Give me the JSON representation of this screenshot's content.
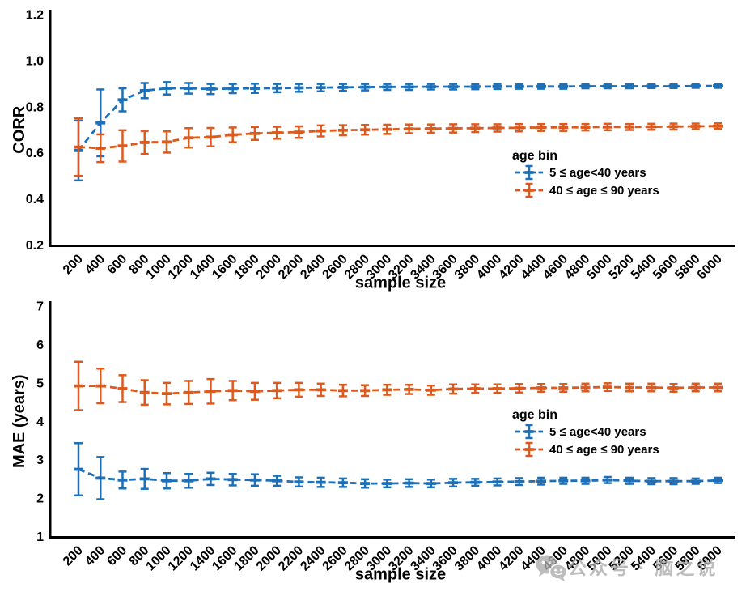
{
  "watermark": {
    "icon": "wechat-icon",
    "text": "公众号 · 脑之说"
  },
  "chart_data": [
    {
      "type": "line",
      "subtype": "errorbar",
      "title": "",
      "xlabel": "sample size",
      "ylabel": "CORR",
      "ylim": [
        0.2,
        1.2
      ],
      "yticks": [
        "0.2",
        "0.4",
        "0.6",
        "0.8",
        "1.0",
        "1.2"
      ],
      "x": [
        200,
        400,
        600,
        800,
        1000,
        1200,
        1400,
        1600,
        1800,
        2000,
        2200,
        2400,
        2600,
        2800,
        3000,
        3200,
        3400,
        3600,
        3800,
        4000,
        4200,
        4400,
        4600,
        4800,
        5000,
        5200,
        5400,
        5600,
        5800,
        6000
      ],
      "grid": false,
      "line_style": "dashed",
      "legend_title": "age bin",
      "legend_position": "inside-center-right",
      "series": [
        {
          "name": "5 ≤ age<40 years",
          "color": "#1d70b7",
          "values": [
            0.61,
            0.73,
            0.83,
            0.87,
            0.88,
            0.88,
            0.877,
            0.879,
            0.88,
            0.881,
            0.882,
            0.883,
            0.884,
            0.885,
            0.886,
            0.886,
            0.887,
            0.887,
            0.887,
            0.888,
            0.888,
            0.888,
            0.888,
            0.889,
            0.889,
            0.889,
            0.889,
            0.889,
            0.89,
            0.89
          ],
          "errors": [
            0.13,
            0.145,
            0.05,
            0.033,
            0.027,
            0.023,
            0.022,
            0.02,
            0.02,
            0.018,
            0.017,
            0.016,
            0.015,
            0.014,
            0.013,
            0.013,
            0.012,
            0.012,
            0.011,
            0.011,
            0.01,
            0.01,
            0.01,
            0.009,
            0.009,
            0.009,
            0.008,
            0.008,
            0.008,
            0.008
          ]
        },
        {
          "name": "40 ≤ age ≤ 90 years",
          "color": "#dc5a1d",
          "values": [
            0.625,
            0.62,
            0.63,
            0.645,
            0.647,
            0.665,
            0.668,
            0.678,
            0.684,
            0.687,
            0.69,
            0.695,
            0.698,
            0.7,
            0.702,
            0.704,
            0.705,
            0.706,
            0.707,
            0.708,
            0.709,
            0.71,
            0.71,
            0.711,
            0.712,
            0.712,
            0.713,
            0.714,
            0.715,
            0.716
          ],
          "errors": [
            0.125,
            0.06,
            0.068,
            0.05,
            0.046,
            0.042,
            0.04,
            0.032,
            0.028,
            0.026,
            0.025,
            0.024,
            0.022,
            0.021,
            0.02,
            0.019,
            0.018,
            0.018,
            0.017,
            0.016,
            0.016,
            0.015,
            0.015,
            0.014,
            0.014,
            0.013,
            0.013,
            0.013,
            0.012,
            0.012
          ]
        }
      ]
    },
    {
      "type": "line",
      "subtype": "errorbar",
      "title": "",
      "xlabel": "sample size",
      "ylabel": "MAE (years)",
      "ylim": [
        1,
        7
      ],
      "yticks": [
        "1",
        "2",
        "3",
        "4",
        "5",
        "6",
        "7"
      ],
      "x": [
        200,
        400,
        600,
        800,
        1000,
        1200,
        1400,
        1600,
        1800,
        2000,
        2200,
        2400,
        2600,
        2800,
        3000,
        3200,
        3400,
        3600,
        3800,
        4000,
        4200,
        4400,
        4600,
        4800,
        5000,
        5200,
        5400,
        5600,
        5800,
        6000
      ],
      "grid": false,
      "line_style": "dashed",
      "legend_title": "age bin",
      "legend_position": "inside-center-right",
      "series": [
        {
          "name": "5 ≤ age<40 years",
          "color": "#1d70b7",
          "values": [
            2.75,
            2.52,
            2.47,
            2.5,
            2.45,
            2.45,
            2.5,
            2.48,
            2.47,
            2.45,
            2.42,
            2.41,
            2.4,
            2.38,
            2.38,
            2.39,
            2.38,
            2.4,
            2.41,
            2.42,
            2.43,
            2.44,
            2.45,
            2.45,
            2.47,
            2.45,
            2.44,
            2.44,
            2.44,
            2.46
          ],
          "errors": [
            0.68,
            0.55,
            0.22,
            0.26,
            0.2,
            0.18,
            0.16,
            0.15,
            0.15,
            0.13,
            0.12,
            0.12,
            0.11,
            0.11,
            0.1,
            0.1,
            0.1,
            0.1,
            0.09,
            0.09,
            0.09,
            0.09,
            0.08,
            0.08,
            0.08,
            0.08,
            0.08,
            0.08,
            0.07,
            0.07
          ]
        },
        {
          "name": "40 ≤ age ≤ 90 years",
          "color": "#dc5a1d",
          "values": [
            4.92,
            4.92,
            4.85,
            4.75,
            4.72,
            4.75,
            4.78,
            4.8,
            4.78,
            4.8,
            4.82,
            4.82,
            4.8,
            4.8,
            4.82,
            4.83,
            4.81,
            4.84,
            4.85,
            4.85,
            4.86,
            4.87,
            4.87,
            4.88,
            4.89,
            4.88,
            4.88,
            4.87,
            4.88,
            4.88
          ],
          "errors": [
            0.63,
            0.45,
            0.35,
            0.32,
            0.28,
            0.3,
            0.32,
            0.25,
            0.22,
            0.2,
            0.18,
            0.16,
            0.15,
            0.14,
            0.13,
            0.12,
            0.12,
            0.12,
            0.11,
            0.11,
            0.11,
            0.1,
            0.1,
            0.1,
            0.1,
            0.1,
            0.1,
            0.1,
            0.1,
            0.1
          ]
        }
      ]
    }
  ]
}
